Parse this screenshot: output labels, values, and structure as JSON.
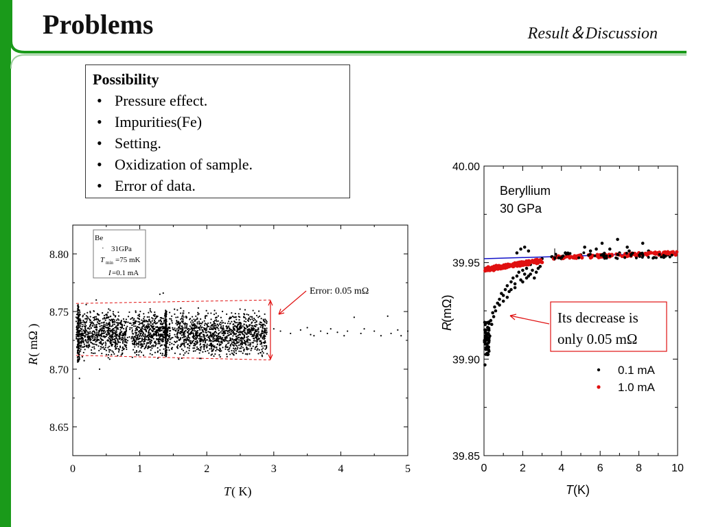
{
  "slide": {
    "title": "Problems",
    "section": "Result＆Discussion"
  },
  "possibility": {
    "title": "Possibility",
    "items": [
      "Pressure effect.",
      "Impurities(Fe)",
      "Setting.",
      "Oxidization of sample.",
      "Error of data."
    ]
  },
  "colors": {
    "green": "#1a9a1a",
    "red": "#e01010",
    "blue": "#1010c8",
    "black": "#000000"
  },
  "chart_data": [
    {
      "type": "scatter",
      "xlabel_italic": "T",
      "xlabel_unit": "( K)",
      "ylabel_italic": "R",
      "ylabel_unit": "( mΩ )",
      "xlim": [
        0,
        5
      ],
      "ylim": [
        8.625,
        8.825
      ],
      "xticks": [
        "0",
        "1",
        "2",
        "3",
        "4",
        "5"
      ],
      "yticks": [
        "8.65",
        "8.70",
        "8.75",
        "8.80"
      ],
      "legend": {
        "sample": "Be",
        "pressure": "31GPa",
        "tmin_italic": "T",
        "tmin_sub": "min",
        "tmin_value": "=75 mK",
        "current_italic": "I",
        "current_value": "=0.1 mA"
      },
      "annotation": "Error: 0.05 mΩ",
      "error_band": {
        "x": [
          0.05,
          2.95
        ],
        "lower": [
          8.712,
          8.708
        ],
        "upper": [
          8.757,
          8.76
        ]
      },
      "series": [
        {
          "values_description_omitted": true,
          "dense_range": {
            "x": [
              0.05,
              2.9
            ],
            "y_center": 8.731,
            "y_spread": 0.012
          },
          "sparse_points": [
            [
              3.0,
              8.735
            ],
            [
              3.1,
              8.733
            ],
            [
              3.25,
              8.731
            ],
            [
              3.4,
              8.734
            ],
            [
              3.5,
              8.736
            ],
            [
              3.55,
              8.73
            ],
            [
              3.6,
              8.729
            ],
            [
              3.7,
              8.733
            ],
            [
              3.8,
              8.731
            ],
            [
              3.85,
              8.735
            ],
            [
              3.95,
              8.732
            ],
            [
              4.05,
              8.729
            ],
            [
              4.1,
              8.733
            ],
            [
              4.2,
              8.745
            ],
            [
              4.3,
              8.731
            ],
            [
              4.35,
              8.735
            ],
            [
              4.5,
              8.733
            ],
            [
              4.6,
              8.729
            ],
            [
              4.7,
              8.746
            ],
            [
              4.75,
              8.731
            ],
            [
              4.85,
              8.734
            ],
            [
              4.9,
              8.729
            ],
            [
              5.0,
              8.733
            ]
          ]
        }
      ]
    },
    {
      "type": "scatter",
      "xlabel_italic": "T",
      "xlabel_unit": " (K)",
      "ylabel_italic": "R",
      "ylabel_unit": " (mΩ)",
      "xlim": [
        0,
        10
      ],
      "ylim": [
        39.85,
        40.0
      ],
      "xticks": [
        "0",
        "2",
        "4",
        "6",
        "8",
        "10"
      ],
      "yticks": [
        "39.85",
        "39.90",
        "39.95",
        "40.00"
      ],
      "text": [
        "Beryllium",
        "30 GPa"
      ],
      "callout": [
        "Its decrease is",
        "only 0.05 mΩ"
      ],
      "series": [
        {
          "name": "0.1 mA",
          "color": "#000000",
          "points": [
            [
              0.05,
              39.897
            ],
            [
              0.1,
              39.905
            ],
            [
              0.15,
              39.91
            ],
            [
              0.2,
              39.913
            ],
            [
              0.25,
              39.916
            ],
            [
              0.3,
              39.912
            ],
            [
              0.35,
              39.92
            ],
            [
              0.4,
              39.918
            ],
            [
              0.45,
              39.924
            ],
            [
              0.5,
              39.922
            ],
            [
              0.55,
              39.927
            ],
            [
              0.6,
              39.925
            ],
            [
              0.7,
              39.929
            ],
            [
              0.8,
              39.931
            ],
            [
              0.9,
              39.934
            ],
            [
              1.0,
              39.933
            ],
            [
              1.1,
              39.936
            ],
            [
              1.2,
              39.938
            ],
            [
              1.3,
              39.935
            ],
            [
              1.4,
              39.94
            ],
            [
              1.5,
              39.942
            ],
            [
              1.6,
              39.939
            ],
            [
              1.7,
              39.943
            ],
            [
              1.8,
              39.945
            ],
            [
              1.9,
              39.941
            ],
            [
              2.0,
              39.946
            ],
            [
              2.1,
              39.944
            ],
            [
              2.2,
              39.947
            ],
            [
              2.3,
              39.943
            ],
            [
              2.4,
              39.949
            ],
            [
              2.5,
              39.946
            ],
            [
              2.6,
              39.95
            ],
            [
              2.7,
              39.945
            ],
            [
              2.8,
              39.951
            ],
            [
              2.9,
              39.948
            ],
            [
              3.0,
              39.952
            ],
            [
              1.7,
              39.955
            ],
            [
              1.9,
              39.957
            ],
            [
              2.1,
              39.958
            ],
            [
              2.3,
              39.956
            ],
            [
              0.8,
              39.928
            ],
            [
              1.0,
              39.93
            ],
            [
              1.2,
              39.932
            ],
            [
              1.4,
              39.936
            ],
            [
              1.6,
              39.937
            ],
            [
              2.0,
              39.94
            ],
            [
              2.2,
              39.942
            ],
            [
              2.4,
              39.944
            ],
            [
              2.6,
              39.942
            ],
            [
              2.8,
              39.947
            ],
            [
              4.0,
              39.952
            ],
            [
              4.5,
              39.953
            ],
            [
              5.0,
              39.954
            ],
            [
              5.5,
              39.956
            ],
            [
              6.0,
              39.954
            ],
            [
              6.5,
              39.957
            ],
            [
              7.0,
              39.955
            ],
            [
              7.5,
              39.956
            ],
            [
              8.0,
              39.954
            ],
            [
              8.5,
              39.956
            ],
            [
              9.0,
              39.955
            ],
            [
              9.5,
              39.954
            ],
            [
              5.2,
              39.958
            ],
            [
              6.1,
              39.96
            ],
            [
              6.9,
              39.962
            ],
            [
              7.4,
              39.958
            ],
            [
              8.2,
              39.96
            ],
            [
              5.8,
              39.957
            ],
            [
              3.5,
              39.953
            ],
            [
              4.2,
              39.955
            ]
          ]
        },
        {
          "name": "1.0 mA",
          "color": "#e01010",
          "points": [
            [
              0.1,
              39.947
            ],
            [
              0.3,
              39.946
            ],
            [
              0.5,
              39.946
            ],
            [
              0.7,
              39.947
            ],
            [
              0.9,
              39.947
            ],
            [
              1.1,
              39.948
            ],
            [
              1.3,
              39.948
            ],
            [
              1.5,
              39.948
            ],
            [
              1.7,
              39.949
            ],
            [
              1.9,
              39.949
            ],
            [
              2.1,
              39.95
            ],
            [
              2.3,
              39.95
            ],
            [
              2.5,
              39.951
            ],
            [
              2.7,
              39.951
            ],
            [
              2.9,
              39.951
            ],
            [
              3.6,
              39.952
            ],
            [
              4.0,
              39.953
            ],
            [
              4.5,
              39.953
            ],
            [
              5.0,
              39.953
            ],
            [
              5.5,
              39.954
            ],
            [
              6.0,
              39.954
            ],
            [
              6.5,
              39.954
            ],
            [
              7.0,
              39.954
            ],
            [
              7.5,
              39.954
            ],
            [
              8.0,
              39.955
            ],
            [
              8.5,
              39.955
            ],
            [
              9.0,
              39.955
            ],
            [
              9.5,
              39.955
            ],
            [
              9.9,
              39.954
            ]
          ]
        }
      ],
      "fit_line": {
        "color": "#1010c8",
        "points": [
          [
            0,
            39.952
          ],
          [
            10,
            39.955
          ]
        ]
      }
    }
  ]
}
